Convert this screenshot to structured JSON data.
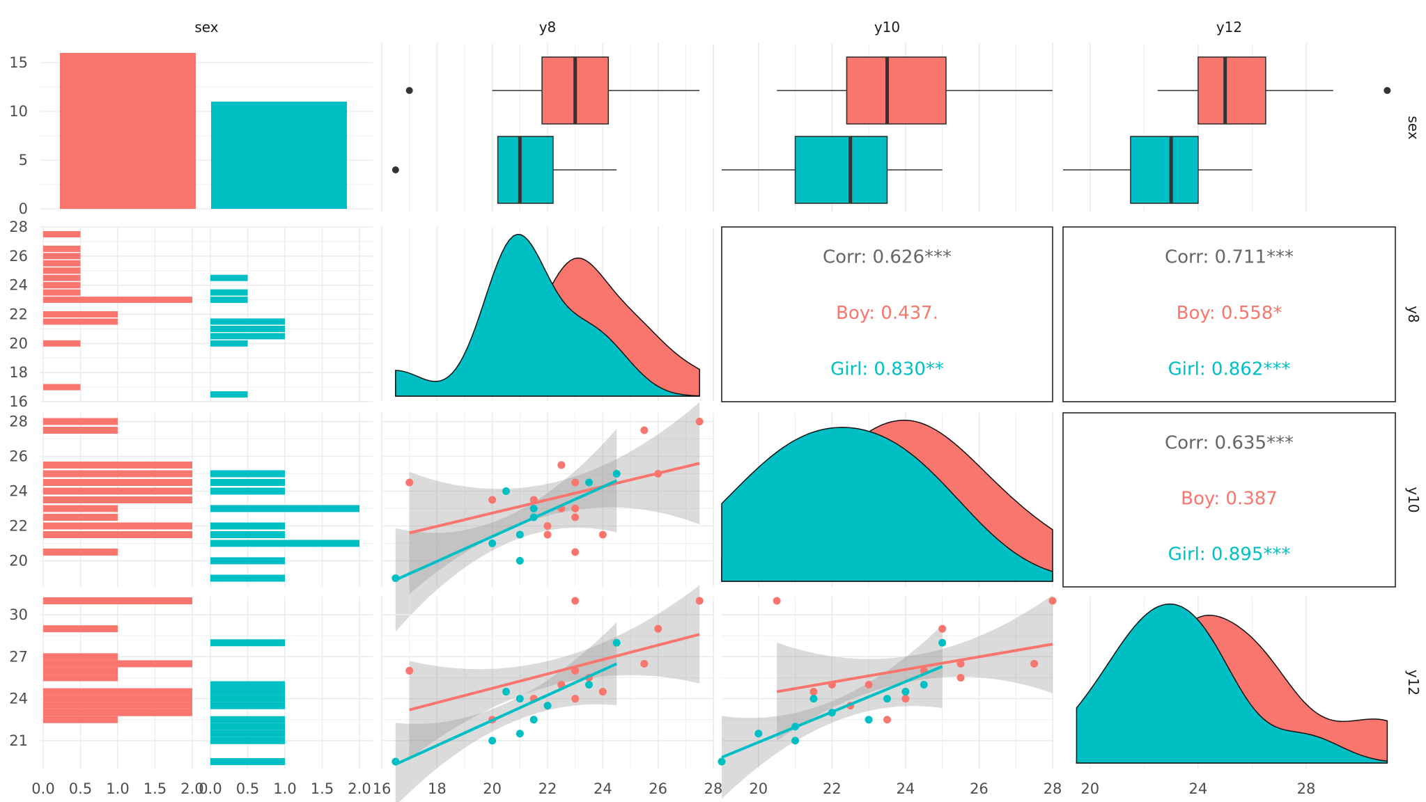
{
  "colors": {
    "boy": "#F8766D",
    "girl": "#00BFC4",
    "neutral": "#666666",
    "grid": "#ebebeb",
    "band": "#999999"
  },
  "chart_data": {
    "type": "pairs",
    "variables": [
      "sex",
      "y8",
      "y10",
      "y12"
    ],
    "groups": [
      "Boy",
      "Girl"
    ],
    "axes": {
      "sex": {
        "xticks": [
          "0.0",
          "0.5",
          "1.0",
          "1.5",
          "2.0"
        ],
        "yticks": [
          "0",
          "5",
          "10",
          "15"
        ]
      },
      "y8": {
        "xticks": [
          "16",
          "18",
          "20",
          "22",
          "24",
          "26",
          "28"
        ],
        "yticks": [
          "16",
          "18",
          "20",
          "22",
          "24",
          "26",
          "28"
        ]
      },
      "y10": {
        "xticks": [
          "20",
          "22",
          "24",
          "26",
          "28"
        ],
        "yticks": [
          "20",
          "22",
          "24",
          "26",
          "28"
        ]
      },
      "y12": {
        "xticks": [
          "20",
          "24",
          "28"
        ],
        "yticks": [
          "21",
          "24",
          "27",
          "30"
        ]
      }
    },
    "bar_counts": {
      "Boy": 16,
      "Girl": 11
    },
    "boxplots": {
      "y8": {
        "Boy": {
          "min": 20.0,
          "q1": 21.8,
          "median": 23.0,
          "q3": 24.2,
          "max": 27.5,
          "outliers": [
            17.0
          ]
        },
        "Girl": {
          "min": 20.2,
          "q1": 20.2,
          "median": 21.0,
          "q3": 22.2,
          "max": 24.5,
          "outliers": [
            16.5
          ]
        }
      },
      "y10": {
        "Boy": {
          "min": 20.5,
          "q1": 22.4,
          "median": 23.5,
          "q3": 25.1,
          "max": 28.0,
          "outliers": []
        },
        "Girl": {
          "min": 19.0,
          "q1": 21.0,
          "median": 22.5,
          "q3": 23.5,
          "max": 25.0,
          "outliers": []
        }
      },
      "y12": {
        "Boy": {
          "min": 22.5,
          "q1": 24.0,
          "median": 25.0,
          "q3": 26.5,
          "max": 29.0,
          "outliers": [
            31.0
          ]
        },
        "Girl": {
          "min": 19.0,
          "q1": 21.5,
          "median": 23.0,
          "q3": 24.0,
          "max": 26.0,
          "outliers": []
        }
      }
    },
    "scatter": {
      "y8_y10": {
        "Boy": [
          [
            17,
            24.5
          ],
          [
            20,
            23.5
          ],
          [
            21.5,
            23.5
          ],
          [
            22,
            22
          ],
          [
            22,
            21.5
          ],
          [
            22.5,
            23
          ],
          [
            22.5,
            25.5
          ],
          [
            23,
            24.5
          ],
          [
            23,
            23
          ],
          [
            23,
            22.5
          ],
          [
            23,
            20.5
          ],
          [
            24,
            21.5
          ],
          [
            25.5,
            27.5
          ],
          [
            26,
            25
          ],
          [
            27.5,
            28
          ]
        ],
        "Girl": [
          [
            16.5,
            19
          ],
          [
            20,
            21
          ],
          [
            20.5,
            24
          ],
          [
            21,
            20
          ],
          [
            21,
            21.5
          ],
          [
            21.5,
            23
          ],
          [
            21.5,
            22.5
          ],
          [
            23.5,
            24.5
          ],
          [
            24.5,
            25
          ]
        ],
        "fit": {
          "Boy": [
            [
              17,
              21.6
            ],
            [
              27.5,
              25.6
            ]
          ],
          "Girl": [
            [
              16.5,
              18.9
            ],
            [
              24.5,
              24.6
            ]
          ]
        }
      },
      "y8_y12": {
        "Boy": [
          [
            17,
            26
          ],
          [
            20,
            22.5
          ],
          [
            21.5,
            24
          ],
          [
            22,
            23.5
          ],
          [
            22.5,
            25
          ],
          [
            23,
            26
          ],
          [
            23,
            24
          ],
          [
            23,
            31
          ],
          [
            23.5,
            25.5
          ],
          [
            24,
            24.5
          ],
          [
            25.5,
            26.5
          ],
          [
            26,
            29
          ],
          [
            27.5,
            31
          ]
        ],
        "Girl": [
          [
            16.5,
            19.5
          ],
          [
            20,
            21
          ],
          [
            20.5,
            24.5
          ],
          [
            21,
            21.5
          ],
          [
            21,
            24
          ],
          [
            21.5,
            22.5
          ],
          [
            22,
            23.5
          ],
          [
            23.5,
            25
          ],
          [
            24.5,
            28
          ]
        ],
        "fit": {
          "Boy": [
            [
              17,
              23.2
            ],
            [
              27.5,
              28.6
            ]
          ],
          "Girl": [
            [
              16.5,
              19.3
            ],
            [
              24.5,
              26.5
            ]
          ]
        }
      },
      "y10_y12": {
        "Boy": [
          [
            20.5,
            31
          ],
          [
            21.5,
            24.5
          ],
          [
            22,
            25
          ],
          [
            22.5,
            23.5
          ],
          [
            23,
            25
          ],
          [
            23.5,
            22.5
          ],
          [
            24,
            24
          ],
          [
            24.5,
            26
          ],
          [
            25,
            29
          ],
          [
            25.5,
            26.5
          ],
          [
            25.5,
            25.5
          ],
          [
            27.5,
            26.5
          ],
          [
            28,
            31
          ]
        ],
        "Girl": [
          [
            19,
            19.5
          ],
          [
            20,
            21.5
          ],
          [
            21,
            21
          ],
          [
            21,
            22
          ],
          [
            21.5,
            24
          ],
          [
            22,
            23
          ],
          [
            23,
            22.5
          ],
          [
            23.5,
            24
          ],
          [
            24,
            24.5
          ],
          [
            24.5,
            25
          ],
          [
            25,
            28
          ]
        ],
        "fit": {
          "Boy": [
            [
              20.5,
              24.5
            ],
            [
              28,
              27.9
            ]
          ],
          "Girl": [
            [
              19,
              19.8
            ],
            [
              25,
              26.3
            ]
          ]
        }
      }
    },
    "correlations": {
      "y8_y10": {
        "corr": "Corr: 0.626***",
        "boy": "Boy: 0.437.",
        "girl": "Girl: 0.830**"
      },
      "y8_y12": {
        "corr": "Corr: 0.711***",
        "boy": "Boy: 0.558*",
        "girl": "Girl: 0.862***"
      },
      "y10_y12": {
        "corr": "Corr: 0.635***",
        "boy": "Boy: 0.387",
        "girl": "Girl: 0.895***"
      }
    }
  }
}
